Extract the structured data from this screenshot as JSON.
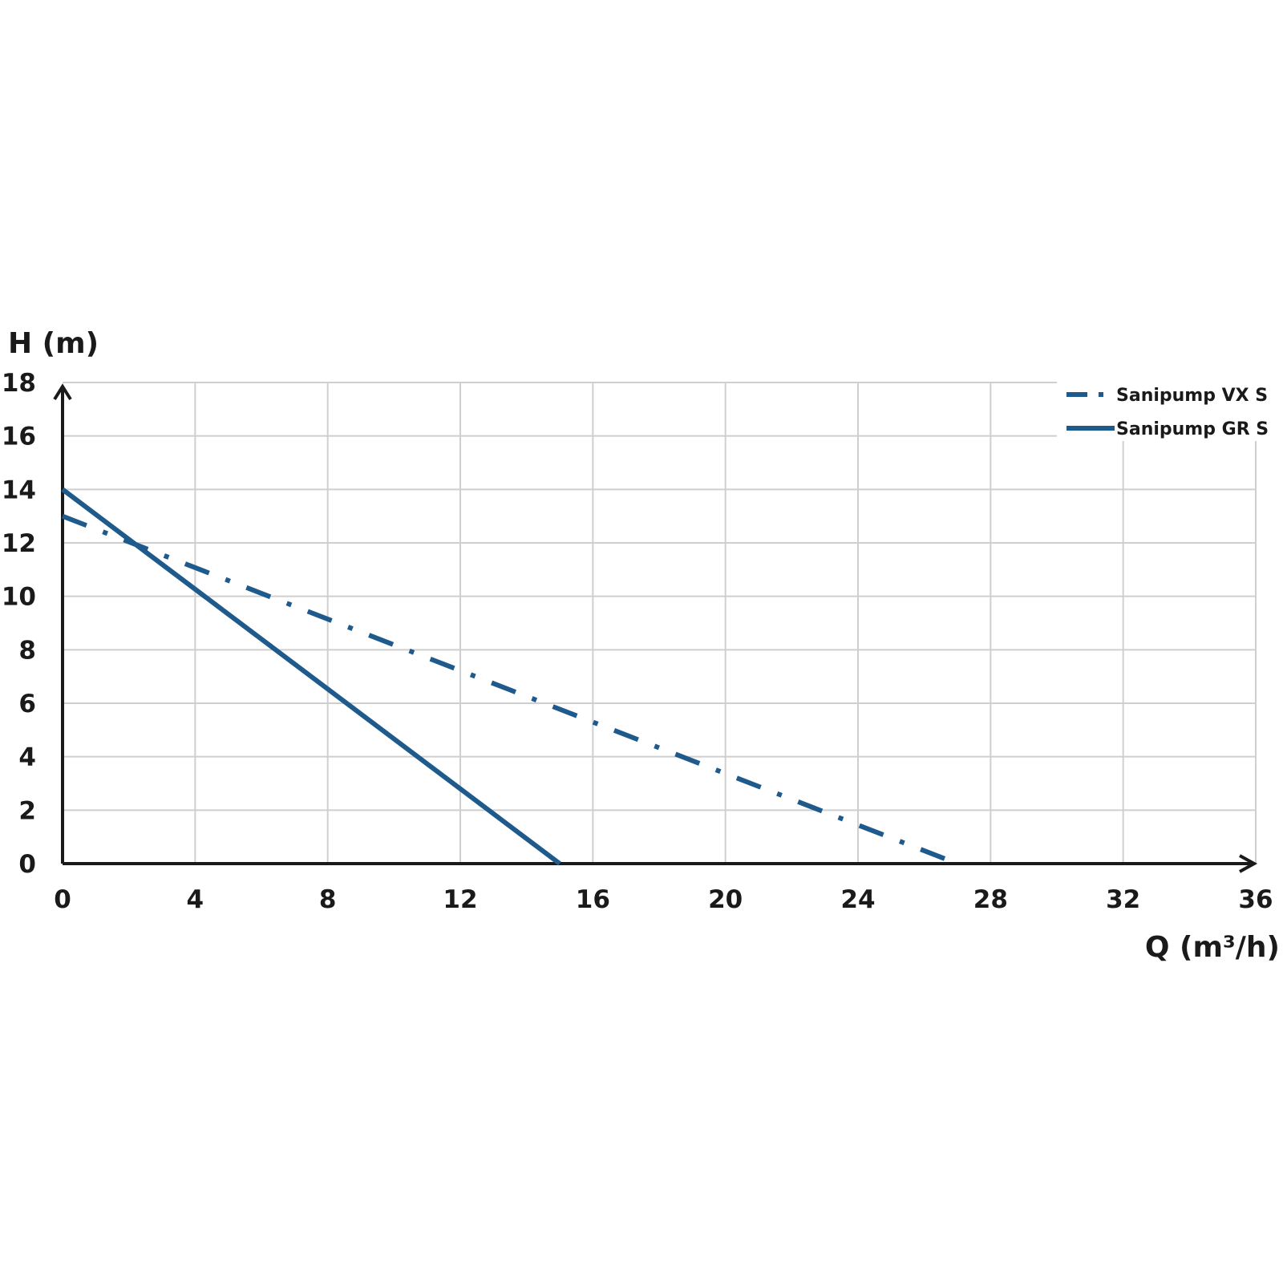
{
  "chart_data": {
    "type": "line",
    "xlabel": "Q (m³/h)",
    "ylabel": "H (m)",
    "xlim": [
      0,
      36
    ],
    "ylim": [
      0,
      18
    ],
    "x_ticks": [
      "0",
      "4",
      "8",
      "12",
      "16",
      "20",
      "24",
      "28",
      "32",
      "36"
    ],
    "y_ticks": [
      "0",
      "2",
      "4",
      "6",
      "8",
      "10",
      "12",
      "14",
      "16",
      "18"
    ],
    "grid": true,
    "legend_position": "top-right",
    "series": [
      {
        "name": "Sanipump VX S",
        "style": "dash-dot",
        "color": "#1f5a8c",
        "points": [
          [
            0,
            13
          ],
          [
            27,
            0
          ]
        ]
      },
      {
        "name": "Sanipump GR S",
        "style": "solid",
        "color": "#1f5a8c",
        "points": [
          [
            0,
            14
          ],
          [
            15,
            0
          ]
        ]
      }
    ]
  }
}
